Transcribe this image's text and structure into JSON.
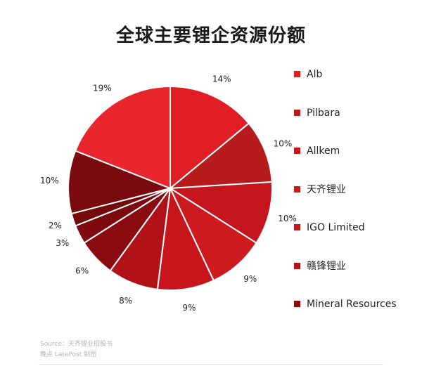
{
  "chart_data": {
    "type": "pie",
    "title": "全球主要锂企资源份额",
    "slices": [
      {
        "label": "Alb",
        "value": 14,
        "display": "14%",
        "color": "#e01e24"
      },
      {
        "label": "Pilbara",
        "value": 10,
        "display": "10%",
        "color": "#b71c1c"
      },
      {
        "label": "Allkem",
        "value": 10,
        "display": "10%",
        "color": "#c5161d"
      },
      {
        "label": "天齐锂业",
        "value": 9,
        "display": "9%",
        "color": "#cc1a1f"
      },
      {
        "label": "IGO Limited",
        "value": 9,
        "display": "9%",
        "color": "#c8151b"
      },
      {
        "label": "赣锋锂业",
        "value": 8,
        "display": "8%",
        "color": "#b01217"
      },
      {
        "label": "Mineral Resources",
        "value": 6,
        "display": "6%",
        "color": "#8a0c10"
      },
      {
        "label": "",
        "value": 3,
        "display": "3%",
        "color": "#7e0a0e"
      },
      {
        "label": "",
        "value": 2,
        "display": "2%",
        "color": "#750a0d"
      },
      {
        "label": "",
        "value": 10,
        "display": "10%",
        "color": "#7a0a0e"
      },
      {
        "label": "",
        "value": 19,
        "display": "19%",
        "color": "#e8262b"
      }
    ],
    "legend": [
      "Alb",
      "Pilbara",
      "Allkem",
      "天齐锂业",
      "IGO Limited",
      "赣锋锂业",
      "Mineral Resources"
    ],
    "legend_position": "right"
  },
  "footer": {
    "source": "Source：天齐锂业招股书",
    "credit": "晚点 LatePost 制图"
  }
}
